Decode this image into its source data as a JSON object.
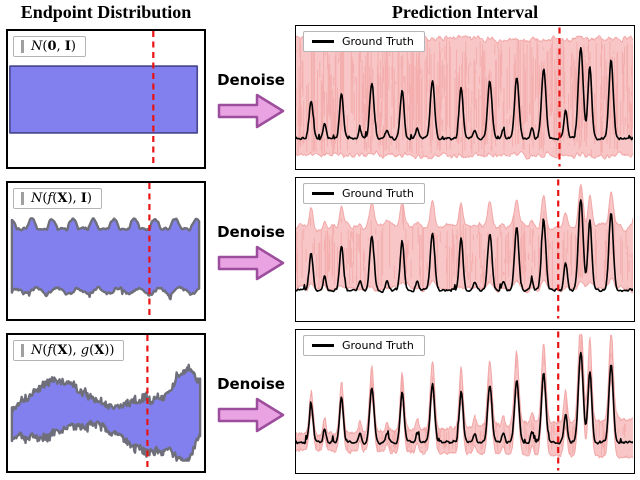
{
  "header": {
    "left_title": "Endpoint Distribution",
    "right_title": "Prediction Interval"
  },
  "arrow_label": "Denoise",
  "rows": [
    {
      "legend_label": "Ground Truth",
      "dist_label_parts": [
        [
          "N",
          "cal"
        ],
        [
          "(",
          "p"
        ],
        [
          "0",
          "b"
        ],
        [
          ", ",
          "p"
        ],
        [
          "I",
          "b"
        ],
        [
          ")",
          "p"
        ]
      ]
    },
    {
      "legend_label": "Ground Truth",
      "dist_label_parts": [
        [
          "N",
          "cal"
        ],
        [
          "(",
          "p"
        ],
        [
          "f",
          "it"
        ],
        [
          "(",
          "p"
        ],
        [
          "X",
          "b"
        ],
        [
          ")",
          "p"
        ],
        [
          ", ",
          "p"
        ],
        [
          "I",
          "b"
        ],
        [
          ")",
          "p"
        ]
      ]
    },
    {
      "legend_label": "Ground Truth",
      "dist_label_parts": [
        [
          "N",
          "cal"
        ],
        [
          "(",
          "p"
        ],
        [
          "f",
          "it"
        ],
        [
          "(",
          "p"
        ],
        [
          "X",
          "b"
        ],
        [
          ")",
          "p"
        ],
        [
          ", ",
          "p"
        ],
        [
          "g",
          "it"
        ],
        [
          "(",
          "p"
        ],
        [
          "X",
          "b"
        ],
        [
          ")",
          "p"
        ],
        [
          ")",
          "p"
        ]
      ]
    }
  ],
  "colors": {
    "band_fill": "#8280ee",
    "band_edge_dark": "#4a4a92",
    "band_edge_fuzzy": "#6f6f7c",
    "interval_fill": "#f7bebe",
    "interval_texture": "#f09a9a",
    "truth_line": "#000000",
    "cut_line": "#e81414",
    "arrow_fill": "#e9a3e3",
    "arrow_edge": "#9c4d9c"
  },
  "chart_data": {
    "type": "line",
    "legend_position": "upper left",
    "grid": false,
    "ground_truth": {
      "baseline": 0.8,
      "peaks": [
        [
          0.045,
          0.26,
          0.008
        ],
        [
          0.085,
          0.1,
          0.006
        ],
        [
          0.135,
          0.32,
          0.008
        ],
        [
          0.19,
          0.07,
          0.006
        ],
        [
          0.225,
          0.39,
          0.009
        ],
        [
          0.27,
          0.06,
          0.006
        ],
        [
          0.315,
          0.35,
          0.008
        ],
        [
          0.36,
          0.07,
          0.006
        ],
        [
          0.405,
          0.41,
          0.009
        ],
        [
          0.49,
          0.36,
          0.008
        ],
        [
          0.53,
          0.06,
          0.006
        ],
        [
          0.575,
          0.4,
          0.009
        ],
        [
          0.615,
          0.06,
          0.006
        ],
        [
          0.655,
          0.44,
          0.009
        ],
        [
          0.7,
          0.07,
          0.006
        ],
        [
          0.735,
          0.49,
          0.009
        ],
        [
          0.8,
          0.2,
          0.007
        ],
        [
          0.845,
          0.64,
          0.01
        ],
        [
          0.872,
          0.5,
          0.008
        ],
        [
          0.935,
          0.55,
          0.009
        ]
      ]
    },
    "panels": [
      {
        "row": 1,
        "endpoint_style": "constant",
        "endpoint": {
          "x0": 0.01,
          "x1": 0.97,
          "top": 0.26,
          "bottom": 0.755
        },
        "interval_style": "full-noise",
        "interval": {
          "upper": 0.09,
          "lower": 0.91
        },
        "cut_x_dist": 0.745,
        "cut_x_pred": 0.782
      },
      {
        "row": 2,
        "endpoint_style": "wavy-constant",
        "endpoint": {
          "x0": 0.02,
          "x1": 0.98,
          "top": 0.34,
          "bottom": 0.8,
          "scallop": 0.07
        },
        "interval_style": "tracking-band",
        "interval": {
          "upper_base": 0.34,
          "lower_base": 0.78,
          "upper_gain": 0.45,
          "lower_gain": 0.1
        },
        "cut_x_dist": 0.725,
        "cut_x_pred": 0.778
      },
      {
        "row": 3,
        "endpoint_style": "varying-width",
        "endpoint": {
          "x0": 0.02,
          "x1": 0.985,
          "center": 0.6,
          "hw_min": 0.07,
          "hw_var": 0.1,
          "blob_x": 0.915,
          "blob_hw": 0.22
        },
        "interval_style": "adaptive",
        "interval": {
          "upper_margin": 0.045,
          "upper_slope": 0.11,
          "peak_gain": 0.16,
          "lower_margin": 0.035,
          "lower_slope": 0.05
        },
        "cut_x_dist": 0.715,
        "cut_x_pred": 0.778
      }
    ]
  }
}
